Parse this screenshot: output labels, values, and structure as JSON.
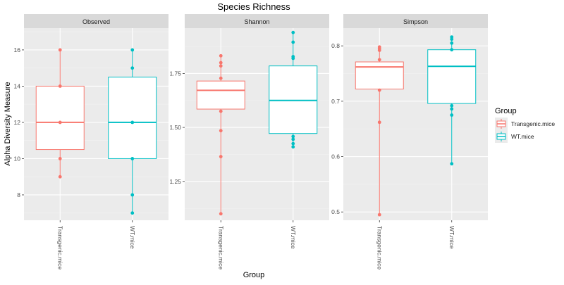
{
  "chart_data": {
    "type": "box",
    "title": "Species Richness",
    "xlabel": "Group",
    "ylabel": "Alpha Diversity Measure",
    "legend": {
      "title": "Group",
      "position": "right",
      "entries": [
        {
          "name": "Transgenic.mice",
          "color": "#F8766D"
        },
        {
          "name": "WT.mice",
          "color": "#00BFC4"
        }
      ]
    },
    "categories": [
      "Transgenic.mice",
      "WT.mice"
    ],
    "colors": {
      "Transgenic.mice": "#F8766D",
      "WT.mice": "#00BFC4"
    },
    "grid": true,
    "panels": [
      {
        "title": "Observed",
        "ylim": [
          6.6,
          17.2
        ],
        "ticks": [
          8,
          10,
          12,
          14,
          16
        ],
        "tick_labels": [
          "8",
          "10",
          "12",
          "14",
          "16"
        ],
        "boxes": [
          {
            "group": "Transgenic.mice",
            "min": 9,
            "q1": 10.5,
            "median": 12,
            "q3": 14,
            "max": 16,
            "points": [
              16,
              14,
              12,
              10,
              9
            ]
          },
          {
            "group": "WT.mice",
            "min": 7,
            "q1": 10,
            "median": 12,
            "q3": 14.5,
            "max": 16,
            "points": [
              16,
              15,
              12,
              10,
              8,
              7
            ]
          }
        ]
      },
      {
        "title": "Shannon",
        "ylim": [
          1.07,
          1.96
        ],
        "ticks": [
          1.25,
          1.5,
          1.75
        ],
        "tick_labels": [
          "1.25",
          "1.50",
          "1.75"
        ],
        "boxes": [
          {
            "group": "Transgenic.mice",
            "min": 1.1,
            "q1": 1.585,
            "median": 1.672,
            "q3": 1.715,
            "max": 1.832,
            "points": [
              1.832,
              1.8,
              1.785,
              1.728,
              1.575,
              1.485,
              1.365,
              1.1
            ]
          },
          {
            "group": "WT.mice",
            "min": 1.41,
            "q1": 1.472,
            "median": 1.625,
            "q3": 1.785,
            "max": 1.94,
            "points": [
              1.94,
              1.895,
              1.828,
              1.82,
              1.458,
              1.445,
              1.425,
              1.41
            ]
          }
        ]
      },
      {
        "title": "Simpson",
        "ylim": [
          0.485,
          0.832
        ],
        "ticks": [
          0.5,
          0.6,
          0.7,
          0.8
        ],
        "tick_labels": [
          "0.5",
          "0.6",
          "0.7",
          "0.8"
        ],
        "boxes": [
          {
            "group": "Transgenic.mice",
            "min": 0.495,
            "q1": 0.722,
            "median": 0.762,
            "q3": 0.771,
            "max": 0.798,
            "points": [
              0.798,
              0.795,
              0.792,
              0.775,
              0.72,
              0.662,
              0.495
            ]
          },
          {
            "group": "WT.mice",
            "min": 0.587,
            "q1": 0.696,
            "median": 0.763,
            "q3": 0.793,
            "max": 0.816,
            "points": [
              0.816,
              0.812,
              0.805,
              0.793,
              0.692,
              0.686,
              0.675,
              0.587
            ]
          }
        ]
      }
    ]
  }
}
